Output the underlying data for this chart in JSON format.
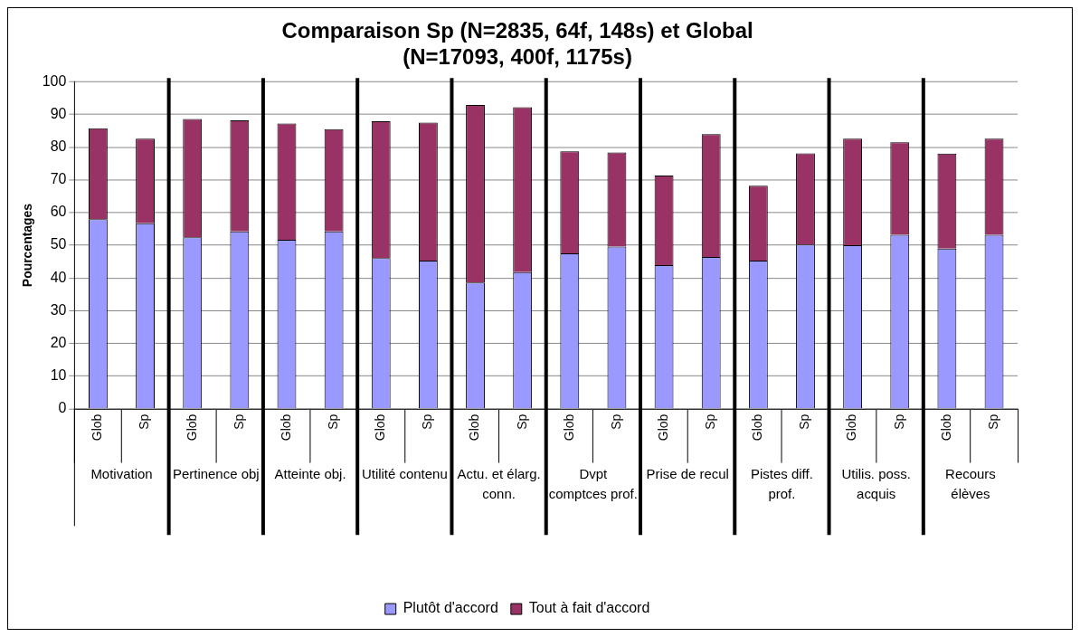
{
  "chart_data": {
    "type": "bar",
    "title": "Comparaison Sp (N=2835, 64f, 148s) et Global (N=17093, 400f, 1175s)",
    "ylabel": "Pourcentages",
    "categories": [
      "Glob",
      "Sp",
      "Glob",
      "Sp",
      "Glob",
      "Sp",
      "Glob",
      "Sp",
      "Glob",
      "Sp",
      "Glob",
      "Sp",
      "Glob",
      "Sp",
      "Glob",
      "Sp",
      "Glob",
      "Sp",
      "Glob",
      "Sp"
    ],
    "annotations": [
      "Motivation",
      "Pertinence obj",
      "Atteinte obj.",
      "Utilité contenu",
      "Actu. et élarg. conn.",
      "Dvpt comptces prof.",
      "Prise de recul",
      "Pistes diff. prof.",
      "Utilis. poss. acquis",
      "Recours élèves"
    ],
    "stacked": true,
    "series": [
      {
        "name": "Plutôt d'accord",
        "color": "#9999ff",
        "values": [
          58,
          56.7,
          52.4,
          54.2,
          51.7,
          54.2,
          46.1,
          45.3,
          38.6,
          41.8,
          47.5,
          49.6,
          43.9,
          46.4,
          45.3,
          50.2,
          50,
          53.2,
          49,
          53.2
        ]
      },
      {
        "name": "Tout à fait d'accord",
        "color": "#993366",
        "values": [
          27.8,
          25.9,
          36.2,
          34,
          35.5,
          31.3,
          41.8,
          42.2,
          54.3,
          50.4,
          31.2,
          28.8,
          27.4,
          37.6,
          22.9,
          27.9,
          32.6,
          28.3,
          29,
          29.4
        ]
      }
    ],
    "ylim": [
      0,
      100
    ],
    "yticks": [
      0,
      10,
      20,
      30,
      40,
      50,
      60,
      70,
      80,
      90,
      100
    ],
    "grid": "y",
    "legend": "bottom"
  }
}
